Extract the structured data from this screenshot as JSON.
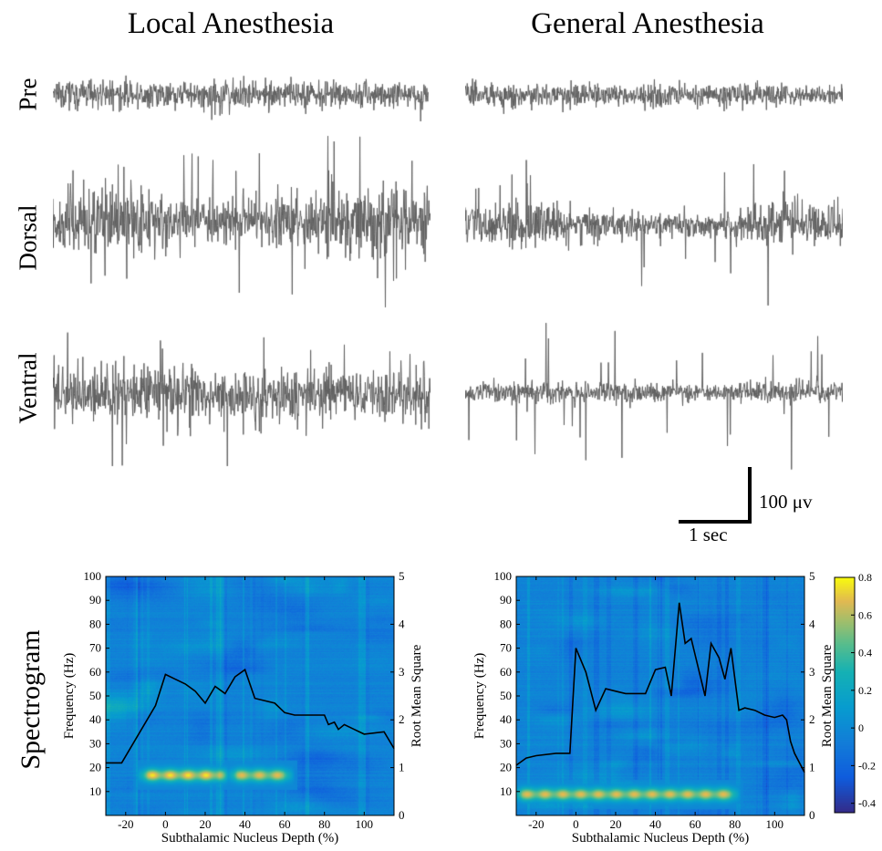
{
  "figure": {
    "titles": {
      "local": "Local Anesthesia",
      "general": "General Anesthesia"
    },
    "row_labels": {
      "pre": "Pre",
      "dorsal": "Dorsal",
      "ventral": "Ventral",
      "spectrogram": "Spectrogram"
    },
    "scale_bar": {
      "amplitude_label": "100 μv",
      "time_label": "1 sec"
    },
    "colors": {
      "trace": "#5f5f5f",
      "rms_line": "#000000"
    }
  },
  "chart_data": [
    {
      "type": "heatmap",
      "name": "local",
      "x_label": "Subthalamic Nucleus Depth (%)",
      "y_label": "Frequency (Hz)",
      "y2_label": "Root Mean Square",
      "xlim": [
        -30,
        115
      ],
      "ylim": [
        0,
        100
      ],
      "y2lim": [
        0,
        5
      ],
      "x_ticks": [
        -20,
        0,
        20,
        40,
        60,
        80,
        100
      ],
      "y_ticks": [
        10,
        20,
        30,
        40,
        50,
        60,
        70,
        80,
        90,
        100
      ],
      "y2_ticks": [
        0,
        1,
        2,
        3,
        4,
        5
      ],
      "hotspots": [
        {
          "x0": -12,
          "x1": 30,
          "f0": 14,
          "f1": 20,
          "value": 0.7
        },
        {
          "x0": 33,
          "x1": 62,
          "f0": 14,
          "f1": 20,
          "value": 0.6
        }
      ],
      "rms_line": {
        "x": [
          -30,
          -22,
          -5,
          0,
          5,
          10,
          15,
          20,
          25,
          30,
          35,
          40,
          45,
          55,
          60,
          65,
          70,
          80,
          82,
          85,
          87,
          90,
          95,
          100,
          110,
          115
        ],
        "y": [
          1.1,
          1.1,
          2.3,
          2.95,
          2.85,
          2.75,
          2.6,
          2.35,
          2.7,
          2.55,
          2.9,
          3.05,
          2.45,
          2.35,
          2.15,
          2.1,
          2.1,
          2.1,
          1.9,
          1.95,
          1.8,
          1.9,
          1.8,
          1.7,
          1.75,
          1.4
        ]
      }
    },
    {
      "type": "heatmap",
      "name": "general",
      "x_label": "Subthalamic Nucleus Depth (%)",
      "y_label": "Frequency (Hz)",
      "y2_label": "Root Mean Square",
      "xlim": [
        -30,
        115
      ],
      "ylim": [
        0,
        100
      ],
      "y2lim": [
        0,
        5
      ],
      "x_ticks": [
        -20,
        0,
        20,
        40,
        60,
        80,
        100
      ],
      "y_ticks": [
        10,
        20,
        30,
        40,
        50,
        60,
        70,
        80,
        90,
        100
      ],
      "y2_ticks": [
        0,
        1,
        2,
        3,
        4,
        5
      ],
      "hotspots": [
        {
          "x0": -30,
          "x1": 80,
          "f0": 6,
          "f1": 12,
          "value": 0.6
        }
      ],
      "rms_line": {
        "x": [
          -30,
          -25,
          -20,
          -10,
          -3,
          0,
          5,
          10,
          15,
          20,
          25,
          30,
          35,
          40,
          45,
          48,
          52,
          55,
          58,
          65,
          68,
          72,
          75,
          78,
          82,
          85,
          90,
          95,
          100,
          104,
          106,
          108,
          110,
          115
        ],
        "y": [
          1.05,
          1.2,
          1.25,
          1.3,
          1.3,
          3.5,
          3.0,
          2.2,
          2.65,
          2.6,
          2.55,
          2.55,
          2.55,
          3.05,
          3.1,
          2.5,
          4.45,
          3.6,
          3.7,
          2.5,
          3.6,
          3.3,
          2.85,
          3.5,
          2.2,
          2.25,
          2.2,
          2.1,
          2.05,
          2.1,
          2.0,
          1.55,
          1.3,
          0.9
        ]
      },
      "colorbar": {
        "range": [
          -0.45,
          0.8
        ],
        "ticks": [
          0.8,
          0.6,
          0.4,
          0.2,
          0,
          -0.2,
          -0.4
        ],
        "tick_labels": [
          "0.8",
          "0.6",
          "0.4",
          "0.2",
          "0",
          "-0.2",
          "-0.4"
        ]
      }
    }
  ]
}
